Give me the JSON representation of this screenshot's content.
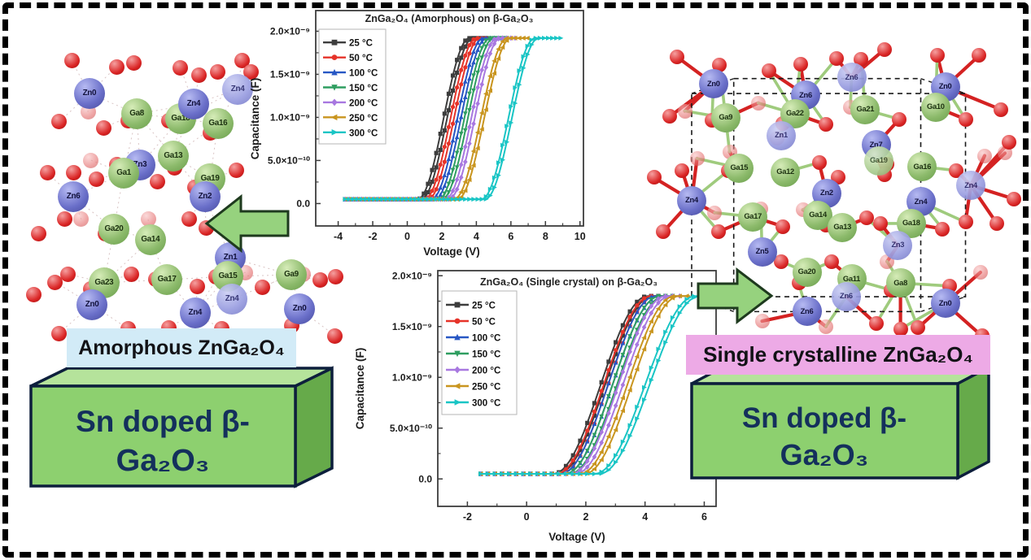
{
  "figure": {
    "background": "#ffffff",
    "border_color": "#000000"
  },
  "panel_labels": {
    "amorphous": "Amorphous ZnGa₂O₄",
    "single_crystal": "Single crystalline ZnGa₂O₄",
    "amorphous_bg": "#d2ebf7",
    "single_crystal_bg": "#edaae6"
  },
  "substrate_boxes": {
    "line1": "Sn doped β-",
    "line2": "Ga₂O₃",
    "front_color": "#8dd06f",
    "top_color": "#b5e39b",
    "side_color": "#66aa4a",
    "text_color": "#14305c"
  },
  "arrows": {
    "fill": "#96d27e",
    "stroke": "#1e3a1e"
  },
  "chart_data": [
    {
      "type": "line",
      "title": "ZnGa₂O₄ (Amorphous) on β-Ga₂O₃",
      "xlabel": "Voltage (V)",
      "ylabel": "Capacitance (F)",
      "x_ticks": [
        -4,
        -2,
        0,
        2,
        4,
        6,
        8,
        10
      ],
      "xlim": [
        -5.3,
        10.2
      ],
      "y_ticks": [
        {
          "v": 0.0,
          "label": "0.0"
        },
        {
          "v": 0.5,
          "label": "5.0×10⁻¹⁰"
        },
        {
          "v": 1.0,
          "label": "1.0×10⁻⁹"
        },
        {
          "v": 1.5,
          "label": "1.5×10⁻⁹"
        },
        {
          "v": 2.0,
          "label": "2.0×10⁻⁹"
        }
      ],
      "ylim": [
        -0.26,
        2.24
      ],
      "c_scale": "1e-9 F",
      "grid": false,
      "legend_position": "upper left",
      "hysteresis_v": 0.2,
      "series": [
        {
          "name": "25 °C",
          "color": "#3d3d3d",
          "marker": "square",
          "v_flat_start": -3.6,
          "v_rise_start": 0.6,
          "v_rise_end": 3.6,
          "v_trace_end": 4.6,
          "c_min": 0.05,
          "c_max": 1.92
        },
        {
          "name": "50 °C",
          "color": "#e63329",
          "marker": "circle",
          "v_flat_start": -3.6,
          "v_rise_start": 1.0,
          "v_rise_end": 4.0,
          "v_trace_end": 5.0,
          "c_min": 0.05,
          "c_max": 1.92
        },
        {
          "name": "100 °C",
          "color": "#2757c4",
          "marker": "triangle-up",
          "v_flat_start": -3.6,
          "v_rise_start": 1.4,
          "v_rise_end": 4.4,
          "v_trace_end": 5.4,
          "c_min": 0.05,
          "c_max": 1.92
        },
        {
          "name": "150 °C",
          "color": "#2f9e60",
          "marker": "triangle-down",
          "v_flat_start": -3.6,
          "v_rise_start": 1.8,
          "v_rise_end": 4.8,
          "v_trace_end": 5.8,
          "c_min": 0.05,
          "c_max": 1.92
        },
        {
          "name": "200 °C",
          "color": "#a878e0",
          "marker": "diamond",
          "v_flat_start": -3.6,
          "v_rise_start": 2.2,
          "v_rise_end": 5.2,
          "v_trace_end": 6.2,
          "c_min": 0.05,
          "c_max": 1.92
        },
        {
          "name": "250 °C",
          "color": "#c9951f",
          "marker": "triangle-left",
          "v_flat_start": -3.6,
          "v_rise_start": 2.7,
          "v_rise_end": 5.8,
          "v_trace_end": 6.9,
          "c_min": 0.05,
          "c_max": 1.92
        },
        {
          "name": "300 °C",
          "color": "#19c5c5",
          "marker": "triangle-right",
          "v_flat_start": -3.6,
          "v_rise_start": 4.3,
          "v_rise_end": 7.4,
          "v_trace_end": 8.7,
          "c_min": 0.05,
          "c_max": 1.92
        }
      ]
    },
    {
      "type": "line",
      "title": "ZnGa₂O₄ (Single crystal) on β-Ga₂O₃",
      "xlabel": "Voltage (V)",
      "ylabel": "Capacitance (F)",
      "x_ticks": [
        -2,
        0,
        2,
        4,
        6
      ],
      "xlim": [
        -3.0,
        6.4
      ],
      "y_ticks": [
        {
          "v": 0.0,
          "label": "0.0"
        },
        {
          "v": 0.5,
          "label": "5.0×10⁻¹⁰"
        },
        {
          "v": 1.0,
          "label": "1.0×10⁻⁹"
        },
        {
          "v": 1.5,
          "label": "1.5×10⁻⁹"
        },
        {
          "v": 2.0,
          "label": "2.0×10⁻⁹"
        }
      ],
      "ylim": [
        -0.27,
        2.05
      ],
      "c_scale": "1e-9 F",
      "grid": false,
      "legend_position": "upper left",
      "hysteresis_v": 0.15,
      "series": [
        {
          "name": "25 °C",
          "color": "#3d3d3d",
          "marker": "square",
          "v_flat_start": -1.55,
          "v_rise_start": 0.9,
          "v_rise_end": 4.1,
          "v_trace_end": 4.5,
          "c_min": 0.05,
          "c_max": 1.8
        },
        {
          "name": "50 °C",
          "color": "#e63329",
          "marker": "circle",
          "v_flat_start": -1.55,
          "v_rise_start": 1.0,
          "v_rise_end": 4.2,
          "v_trace_end": 4.65,
          "c_min": 0.05,
          "c_max": 1.8
        },
        {
          "name": "100 °C",
          "color": "#2757c4",
          "marker": "triangle-up",
          "v_flat_start": -1.55,
          "v_rise_start": 1.15,
          "v_rise_end": 4.35,
          "v_trace_end": 4.8,
          "c_min": 0.05,
          "c_max": 1.8
        },
        {
          "name": "150 °C",
          "color": "#2f9e60",
          "marker": "triangle-down",
          "v_flat_start": -1.55,
          "v_rise_start": 1.3,
          "v_rise_end": 4.5,
          "v_trace_end": 4.95,
          "c_min": 0.05,
          "c_max": 1.8
        },
        {
          "name": "200 °C",
          "color": "#a878e0",
          "marker": "diamond",
          "v_flat_start": -1.55,
          "v_rise_start": 1.5,
          "v_rise_end": 4.7,
          "v_trace_end": 5.15,
          "c_min": 0.05,
          "c_max": 1.8
        },
        {
          "name": "250 °C",
          "color": "#c9951f",
          "marker": "triangle-left",
          "v_flat_start": -1.55,
          "v_rise_start": 1.8,
          "v_rise_end": 5.0,
          "v_trace_end": 5.45,
          "c_min": 0.05,
          "c_max": 1.8
        },
        {
          "name": "300 °C",
          "color": "#19c5c5",
          "marker": "triangle-right",
          "v_flat_start": -1.55,
          "v_rise_start": 2.3,
          "v_rise_end": 5.7,
          "v_trace_end": 5.95,
          "c_min": 0.05,
          "c_max": 1.8
        }
      ]
    }
  ],
  "structures": {
    "amorphous": {
      "description": "Amorphous ZnGa₂O₄ atomic model",
      "atoms": [
        [
          20.5,
          16,
          "zn",
          "Zn0"
        ],
        [
          35.4,
          22.7,
          "ga",
          "Ga8"
        ],
        [
          49.2,
          24.3,
          "ga",
          "Ga18"
        ],
        [
          53.3,
          19.5,
          "zn",
          "Zn4"
        ],
        [
          61,
          25.9,
          "ga",
          "Ga16"
        ],
        [
          67.2,
          14.7,
          "znl",
          "Zn4"
        ],
        [
          46.9,
          36.5,
          "ga",
          "Ga13"
        ],
        [
          36.4,
          39.5,
          "zn",
          "Zn3"
        ],
        [
          31.3,
          42.1,
          "ga",
          "Ga1"
        ],
        [
          58.5,
          44,
          "ga",
          "Ga19"
        ],
        [
          56.9,
          49.9,
          "zn",
          "Zn2"
        ],
        [
          15.4,
          49.9,
          "zn",
          "Zn6"
        ],
        [
          28.2,
          60.5,
          "ga",
          "Ga20"
        ],
        [
          39.7,
          64,
          "ga",
          "Ga14"
        ],
        [
          64.9,
          69.9,
          "zn",
          "Zn1"
        ],
        [
          25.1,
          78.1,
          "ga",
          "Ga23"
        ],
        [
          44.9,
          77.1,
          "ga",
          "Ga17"
        ],
        [
          64.1,
          76,
          "ga",
          "Ga15"
        ],
        [
          21.3,
          85.3,
          "zn",
          "Zn0"
        ],
        [
          65.4,
          83.5,
          "znl",
          "Zn4"
        ],
        [
          53.8,
          88,
          "zn",
          "Zn4"
        ],
        [
          84.1,
          75.5,
          "ga",
          "Ga9"
        ],
        [
          86.7,
          86.7,
          "zn",
          "Zn0"
        ],
        [
          14.9,
          5.3,
          "o",
          ""
        ],
        [
          29,
          7.2,
          "o",
          ""
        ],
        [
          34.6,
          5.9,
          "o",
          ""
        ],
        [
          49.2,
          7.5,
          "o",
          ""
        ],
        [
          55.1,
          10.1,
          "o",
          ""
        ],
        [
          60.8,
          8.8,
          "o",
          ""
        ],
        [
          68.5,
          5.3,
          "o",
          ""
        ],
        [
          71.5,
          9,
          "o",
          ""
        ],
        [
          20,
          22.1,
          "ol",
          ""
        ],
        [
          32.8,
          24.8,
          "o",
          ""
        ],
        [
          45.6,
          24.8,
          "o",
          ""
        ],
        [
          58.5,
          28.8,
          "o",
          ""
        ],
        [
          11,
          25.3,
          "o",
          ""
        ],
        [
          24.9,
          27.2,
          "o",
          ""
        ],
        [
          21,
          37.9,
          "ol",
          ""
        ],
        [
          29,
          39.2,
          "o",
          ""
        ],
        [
          7.2,
          42.1,
          "o",
          ""
        ],
        [
          15.4,
          41.9,
          "o",
          ""
        ],
        [
          22.6,
          44,
          "o",
          ""
        ],
        [
          41.8,
          44.8,
          "o",
          ""
        ],
        [
          47.4,
          40.5,
          "o",
          ""
        ],
        [
          53.8,
          46.7,
          "o",
          ""
        ],
        [
          66.7,
          41.3,
          "o",
          ""
        ],
        [
          12.8,
          57.3,
          "o",
          ""
        ],
        [
          17.9,
          57.3,
          "ol",
          ""
        ],
        [
          4.4,
          62.1,
          "o",
          ""
        ],
        [
          25.6,
          61.9,
          "o",
          ""
        ],
        [
          39,
          57.3,
          "ol",
          ""
        ],
        [
          51.8,
          57.3,
          "o",
          ""
        ],
        [
          57.2,
          60,
          "o",
          ""
        ],
        [
          13.6,
          75.2,
          "o",
          ""
        ],
        [
          9.7,
          77.9,
          "o",
          ""
        ],
        [
          21,
          80,
          "o",
          ""
        ],
        [
          33.8,
          75.2,
          "o",
          ""
        ],
        [
          41.5,
          76.8,
          "o",
          ""
        ],
        [
          54.6,
          79.2,
          "o",
          ""
        ],
        [
          60.3,
          76,
          "o",
          ""
        ],
        [
          69.7,
          74.7,
          "ol",
          ""
        ],
        [
          74.9,
          79.5,
          "o",
          ""
        ],
        [
          87.7,
          75.2,
          "ol",
          ""
        ],
        [
          93.1,
          77.3,
          "o",
          ""
        ],
        [
          98,
          76,
          "o",
          ""
        ],
        [
          3,
          82,
          "o",
          ""
        ],
        [
          10.8,
          94.7,
          "o",
          ""
        ],
        [
          32.8,
          93.3,
          "o",
          ""
        ],
        [
          45.4,
          92.8,
          "o",
          ""
        ],
        [
          62.1,
          93.3,
          "o",
          ""
        ],
        [
          84.1,
          92,
          "o",
          ""
        ],
        [
          97.9,
          95.5,
          "o",
          ""
        ]
      ]
    },
    "single_crystal": {
      "description": "Single crystalline ZnGa₂O₄ atomic model with unit cell",
      "atoms": [
        [
          17.4,
          12.4,
          "zn",
          "Zn0"
        ],
        [
          41.5,
          16,
          "zn",
          "Zn6"
        ],
        [
          53.5,
          10.3,
          "znl",
          "Zn6"
        ],
        [
          78,
          13.3,
          "zn",
          "Zn0"
        ],
        [
          20.6,
          23.1,
          "ga",
          "Ga9"
        ],
        [
          38.7,
          21.8,
          "ga",
          "Ga22"
        ],
        [
          57.1,
          20.5,
          "ga",
          "Ga21"
        ],
        [
          75.5,
          19.7,
          "ga",
          "Ga10"
        ],
        [
          35.1,
          28.6,
          "znl",
          "Zn1"
        ],
        [
          59.9,
          31.6,
          "zn",
          "Zn7"
        ],
        [
          60.6,
          36.7,
          "gal",
          "Ga19"
        ],
        [
          24.1,
          38.9,
          "ga",
          "Ga15"
        ],
        [
          36.2,
          40.2,
          "ga",
          "Ga12"
        ],
        [
          72,
          38.5,
          "ga",
          "Ga16"
        ],
        [
          47,
          46.9,
          "zn",
          "Zn2"
        ],
        [
          11.7,
          49.1,
          "zn",
          "Zn4"
        ],
        [
          84.7,
          44.4,
          "znl",
          "Zn4"
        ],
        [
          71.6,
          49.6,
          "zn",
          "Zn4"
        ],
        [
          27.7,
          54.3,
          "ga",
          "Ga17"
        ],
        [
          44.7,
          53.8,
          "ga",
          "Ga14"
        ],
        [
          51.1,
          57.7,
          "ga",
          "Ga13"
        ],
        [
          69.1,
          56.4,
          "ga",
          "Ga18"
        ],
        [
          65.6,
          63.3,
          "znl",
          "Zn3"
        ],
        [
          30.1,
          65.4,
          "zn",
          "Zn5"
        ],
        [
          41.8,
          71.8,
          "ga",
          "Ga20"
        ],
        [
          53.5,
          73.9,
          "ga",
          "Ga11"
        ],
        [
          66.3,
          75.2,
          "ga",
          "Ga8"
        ],
        [
          41.8,
          84.2,
          "zn",
          "Zn6"
        ],
        [
          52.1,
          79.5,
          "znl",
          "Zn6"
        ],
        [
          78,
          81.6,
          "zn",
          "Zn0"
        ],
        [
          7.8,
          3.8,
          "o",
          ""
        ],
        [
          19,
          6.4,
          "o",
          ""
        ],
        [
          31.8,
          8.1,
          "o",
          ""
        ],
        [
          40.1,
          6.2,
          "o",
          ""
        ],
        [
          49.6,
          4.3,
          "o",
          ""
        ],
        [
          56,
          4.7,
          "o",
          ""
        ],
        [
          62.1,
          1.5,
          "o",
          ""
        ],
        [
          75.9,
          3.3,
          "o",
          ""
        ],
        [
          86.9,
          3.4,
          "o",
          ""
        ],
        [
          6,
          22.6,
          "o",
          ""
        ],
        [
          9.9,
          20.9,
          "ol",
          ""
        ],
        [
          17,
          23.9,
          "o",
          ""
        ],
        [
          29.1,
          18.4,
          "ol",
          ""
        ],
        [
          35.5,
          24.8,
          "o",
          ""
        ],
        [
          46.8,
          25.2,
          "o",
          ""
        ],
        [
          53.2,
          19.7,
          "ol",
          ""
        ],
        [
          66,
          23.5,
          "o",
          ""
        ],
        [
          83.3,
          23.5,
          "o",
          ""
        ],
        [
          92.6,
          20.5,
          "o",
          ""
        ],
        [
          34,
          29.5,
          "ol",
          ""
        ],
        [
          45,
          37.2,
          "o",
          ""
        ],
        [
          21.6,
          33.8,
          "ol",
          ""
        ],
        [
          13.1,
          35.9,
          "ol",
          ""
        ],
        [
          1.8,
          41.9,
          "o",
          ""
        ],
        [
          9.2,
          39.7,
          "o",
          ""
        ],
        [
          21.3,
          39.7,
          "o",
          ""
        ],
        [
          50,
          41.9,
          "o",
          ""
        ],
        [
          62.8,
          37.6,
          "o",
          ""
        ],
        [
          80.9,
          39.7,
          "o",
          ""
        ],
        [
          88.3,
          35,
          "ol",
          ""
        ],
        [
          93.6,
          34.2,
          "ol",
          ""
        ],
        [
          62.1,
          41,
          "o",
          ""
        ],
        [
          94.7,
          30.8,
          "o",
          ""
        ],
        [
          96,
          48.7,
          "o",
          ""
        ],
        [
          29.8,
          51.7,
          "ol",
          ""
        ],
        [
          17.7,
          53,
          "ol",
          ""
        ],
        [
          4.3,
          59,
          "o",
          ""
        ],
        [
          18.8,
          59,
          "o",
          ""
        ],
        [
          35.5,
          57.3,
          "o",
          ""
        ],
        [
          40.8,
          52.1,
          "ol",
          ""
        ],
        [
          46.8,
          56.8,
          "o",
          ""
        ],
        [
          57.4,
          54.7,
          "o",
          ""
        ],
        [
          61,
          56.4,
          "o",
          ""
        ],
        [
          77.3,
          58.1,
          "o",
          ""
        ],
        [
          83.3,
          56,
          "o",
          ""
        ],
        [
          91.5,
          56.4,
          "o",
          ""
        ],
        [
          62.8,
          68.4,
          "ol",
          ""
        ],
        [
          35.1,
          68.4,
          "o",
          ""
        ],
        [
          48.2,
          68.4,
          "o",
          ""
        ],
        [
          39.7,
          75.2,
          "o",
          ""
        ],
        [
          51.8,
          74.4,
          "o",
          ""
        ],
        [
          63.8,
          77.4,
          "o",
          ""
        ],
        [
          79.1,
          76.1,
          "o",
          ""
        ],
        [
          87.2,
          71.8,
          "ol",
          ""
        ],
        [
          30.1,
          87.2,
          "ol",
          ""
        ],
        [
          46.8,
          88.9,
          "ol",
          ""
        ],
        [
          59.9,
          88,
          "o",
          ""
        ],
        [
          66.3,
          89.7,
          "o",
          ""
        ],
        [
          70.9,
          89.3,
          "o",
          ""
        ],
        [
          87.6,
          91.9,
          "o",
          ""
        ]
      ]
    }
  }
}
